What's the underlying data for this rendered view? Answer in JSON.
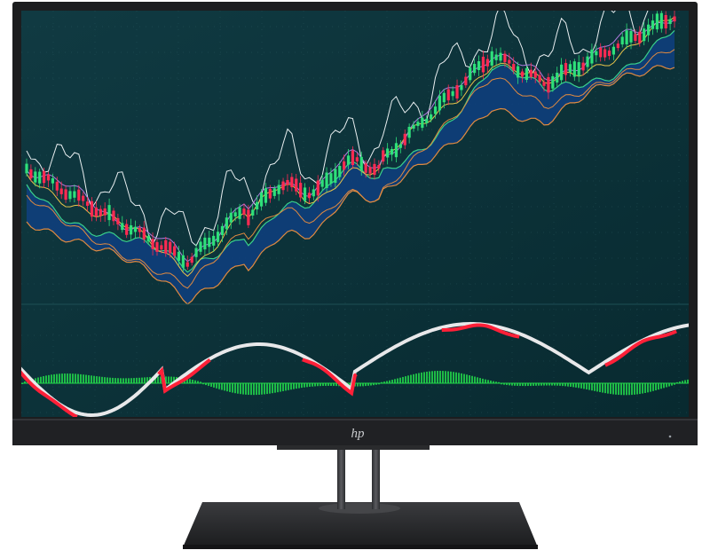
{
  "monitor": {
    "brand_logo_text": "hp",
    "bezel_color": "#1c1d1f",
    "stand_color": "#2a2b2d",
    "screen_background": "#0b2f36"
  },
  "screen_chart": {
    "grid_color": "#3b6f74",
    "cloud_color": "#0f3f80",
    "cloud_edge_color": "#2a6ad0",
    "bull_candle_color": "#2ee07a",
    "bear_candle_color": "#ff2a52",
    "line_white": "#e8eef0",
    "line_yellow": "#e8c44a",
    "line_orange": "#e08a40",
    "line_purple": "#b07ae0",
    "line_green": "#3ad08a",
    "oscillator_red": "#ff2038",
    "oscillator_white": "#e8e8ea",
    "histogram_green": "#22d44a"
  }
}
